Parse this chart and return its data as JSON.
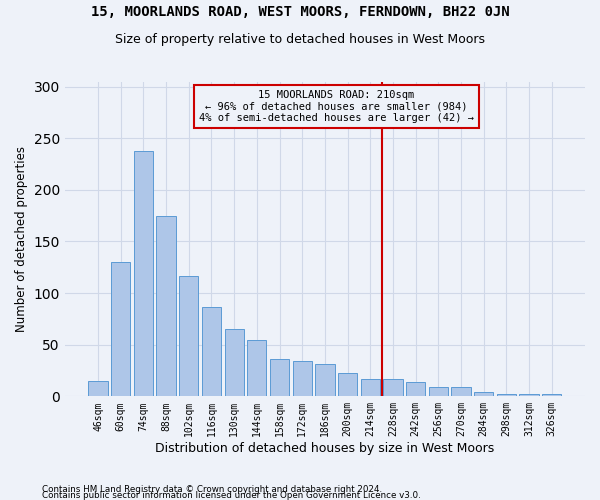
{
  "title": "15, MOORLANDS ROAD, WEST MOORS, FERNDOWN, BH22 0JN",
  "subtitle": "Size of property relative to detached houses in West Moors",
  "xlabel": "Distribution of detached houses by size in West Moors",
  "ylabel": "Number of detached properties",
  "footnote1": "Contains HM Land Registry data © Crown copyright and database right 2024.",
  "footnote2": "Contains public sector information licensed under the Open Government Licence v3.0.",
  "bar_labels": [
    "46sqm",
    "60sqm",
    "74sqm",
    "88sqm",
    "102sqm",
    "116sqm",
    "130sqm",
    "144sqm",
    "158sqm",
    "172sqm",
    "186sqm",
    "200sqm",
    "214sqm",
    "228sqm",
    "242sqm",
    "256sqm",
    "270sqm",
    "284sqm",
    "298sqm",
    "312sqm",
    "326sqm"
  ],
  "bar_values": [
    15,
    130,
    238,
    175,
    117,
    87,
    65,
    55,
    36,
    34,
    31,
    23,
    17,
    17,
    14,
    9,
    9,
    4,
    2,
    2,
    2
  ],
  "bar_color": "#aec6e8",
  "bar_edge_color": "#5b9bd5",
  "grid_color": "#d0d8e8",
  "property_line_x": 12.5,
  "annotation_title": "15 MOORLANDS ROAD: 210sqm",
  "annotation_line2": "← 96% of detached houses are smaller (984)",
  "annotation_line3": "4% of semi-detached houses are larger (42) →",
  "vline_color": "#cc0000",
  "ylim": [
    0,
    305
  ],
  "yticks": [
    0,
    50,
    100,
    150,
    200,
    250,
    300
  ],
  "background_color": "#eef2f9",
  "title_fontsize": 10,
  "subtitle_fontsize": 9
}
